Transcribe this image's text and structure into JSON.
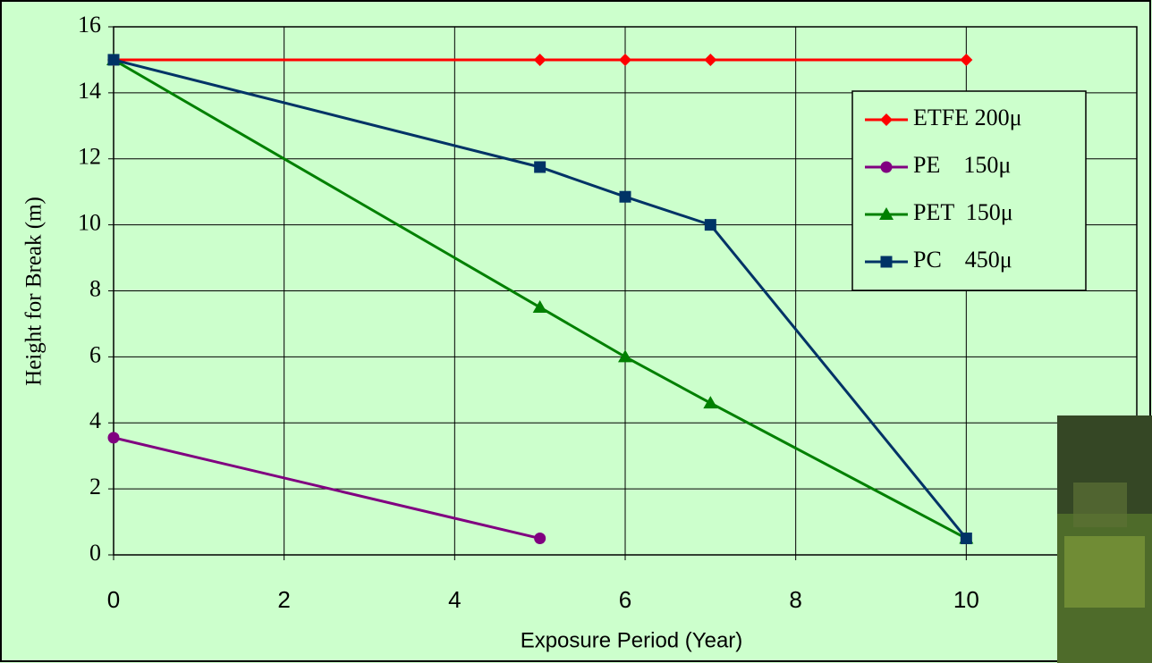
{
  "chart_data": {
    "type": "line",
    "x_label": "Exposure Period (Year)",
    "y_label": "Height for Break (m)",
    "xlim": [
      0,
      12
    ],
    "xticks": [
      0,
      2,
      4,
      6,
      8,
      10
    ],
    "ylim": [
      0,
      16
    ],
    "yticks": [
      0,
      2,
      4,
      6,
      8,
      10,
      12,
      14,
      16
    ],
    "grid": true,
    "legend": "upper right",
    "series": [
      {
        "name": "ETFE 200μ",
        "color": "#ff0000",
        "marker": "diamond",
        "x": [
          0,
          5,
          6,
          7,
          10
        ],
        "values": [
          15,
          15,
          15,
          15,
          15
        ]
      },
      {
        "name": "PE    150μ",
        "color": "#800080",
        "marker": "circle",
        "x": [
          0,
          5
        ],
        "values": [
          3.55,
          0.5
        ]
      },
      {
        "name": "PET  150μ",
        "color": "#008000",
        "marker": "triangle",
        "x": [
          0,
          5,
          6,
          7,
          10
        ],
        "values": [
          15,
          7.5,
          6.0,
          4.6,
          0.5
        ]
      },
      {
        "name": "PC    450μ",
        "color": "#003366",
        "marker": "square",
        "x": [
          0,
          5,
          6,
          7,
          10
        ],
        "values": [
          15,
          11.75,
          10.85,
          10.0,
          0.5
        ]
      }
    ]
  }
}
